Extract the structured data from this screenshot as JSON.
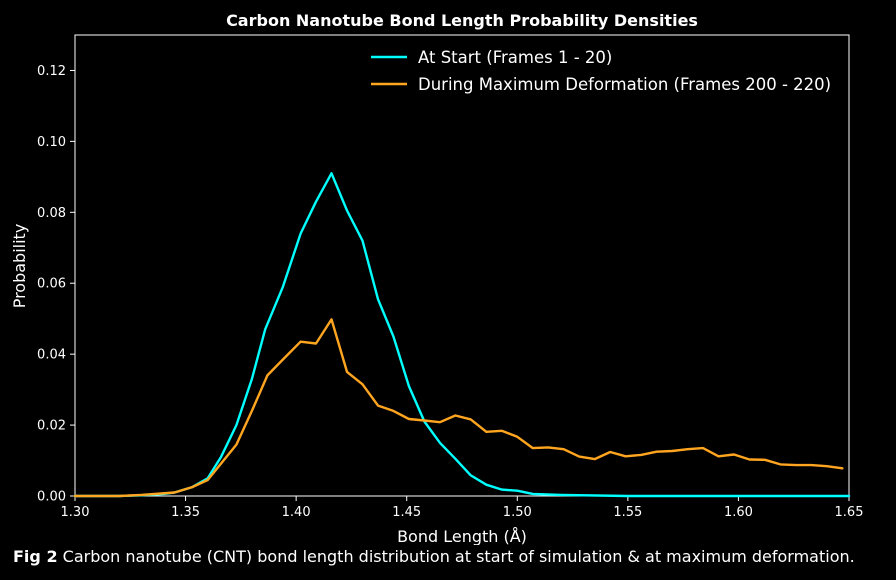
{
  "chart_data": {
    "type": "line",
    "title": "Carbon Nanotube Bond Length Probability Densities",
    "xlabel": "Bond Length (Å)",
    "ylabel": "Probability",
    "xlim": [
      1.3,
      1.65
    ],
    "ylim": [
      0,
      0.13
    ],
    "x_ticks": [
      "1.30",
      "1.35",
      "1.40",
      "1.45",
      "1.50",
      "1.55",
      "1.60",
      "1.65"
    ],
    "y_ticks": [
      "0.00",
      "0.02",
      "0.04",
      "0.06",
      "0.08",
      "0.10",
      "0.12"
    ],
    "legend_position": "top-right",
    "series": [
      {
        "name": "At Start (Frames 1 - 20)",
        "color": "#00ffff",
        "x": [
          1.3,
          1.305,
          1.31,
          1.32,
          1.33,
          1.34,
          1.345,
          1.353,
          1.36,
          1.366,
          1.373,
          1.38,
          1.386,
          1.394,
          1.402,
          1.409,
          1.416,
          1.423,
          1.43,
          1.437,
          1.444,
          1.451,
          1.458,
          1.465,
          1.472,
          1.479,
          1.486,
          1.493,
          1.5,
          1.507,
          1.52,
          1.55,
          1.6,
          1.65
        ],
        "values": [
          0.0,
          0.0,
          0.0,
          0.0,
          0.0002,
          0.0006,
          0.001,
          0.0025,
          0.005,
          0.011,
          0.02,
          0.033,
          0.047,
          0.059,
          0.074,
          0.083,
          0.091,
          0.0805,
          0.072,
          0.0555,
          0.045,
          0.031,
          0.021,
          0.015,
          0.0105,
          0.0058,
          0.0032,
          0.0018,
          0.0015,
          0.0006,
          0.0003,
          0.0,
          0.0,
          0.0
        ]
      },
      {
        "name": "During Maximum Deformation (Frames 200 - 220)",
        "color": "#ffa51f",
        "x": [
          1.3,
          1.31,
          1.32,
          1.33,
          1.345,
          1.353,
          1.36,
          1.373,
          1.38,
          1.387,
          1.394,
          1.402,
          1.409,
          1.416,
          1.423,
          1.43,
          1.437,
          1.444,
          1.451,
          1.458,
          1.465,
          1.472,
          1.479,
          1.486,
          1.493,
          1.5,
          1.507,
          1.514,
          1.521,
          1.528,
          1.535,
          1.542,
          1.549,
          1.556,
          1.563,
          1.57,
          1.577,
          1.584,
          1.591,
          1.598,
          1.605,
          1.612,
          1.619,
          1.626,
          1.633,
          1.64,
          1.647
        ],
        "values": [
          0.0,
          0.0,
          0.0,
          0.0003,
          0.001,
          0.0025,
          0.0045,
          0.0145,
          0.024,
          0.034,
          0.0385,
          0.0435,
          0.043,
          0.0498,
          0.035,
          0.0315,
          0.0255,
          0.024,
          0.0217,
          0.0213,
          0.0208,
          0.0227,
          0.0216,
          0.0181,
          0.0184,
          0.0167,
          0.0135,
          0.0137,
          0.0132,
          0.0111,
          0.0104,
          0.0124,
          0.0112,
          0.0116,
          0.0125,
          0.0127,
          0.0132,
          0.0135,
          0.0112,
          0.0117,
          0.0103,
          0.0102,
          0.0089,
          0.0087,
          0.0087,
          0.0084,
          0.0078
        ]
      }
    ]
  },
  "caption": {
    "label": "Fig 2",
    "text": " Carbon nanotube (CNT) bond length distribution at start of simulation & at maximum deformation."
  }
}
